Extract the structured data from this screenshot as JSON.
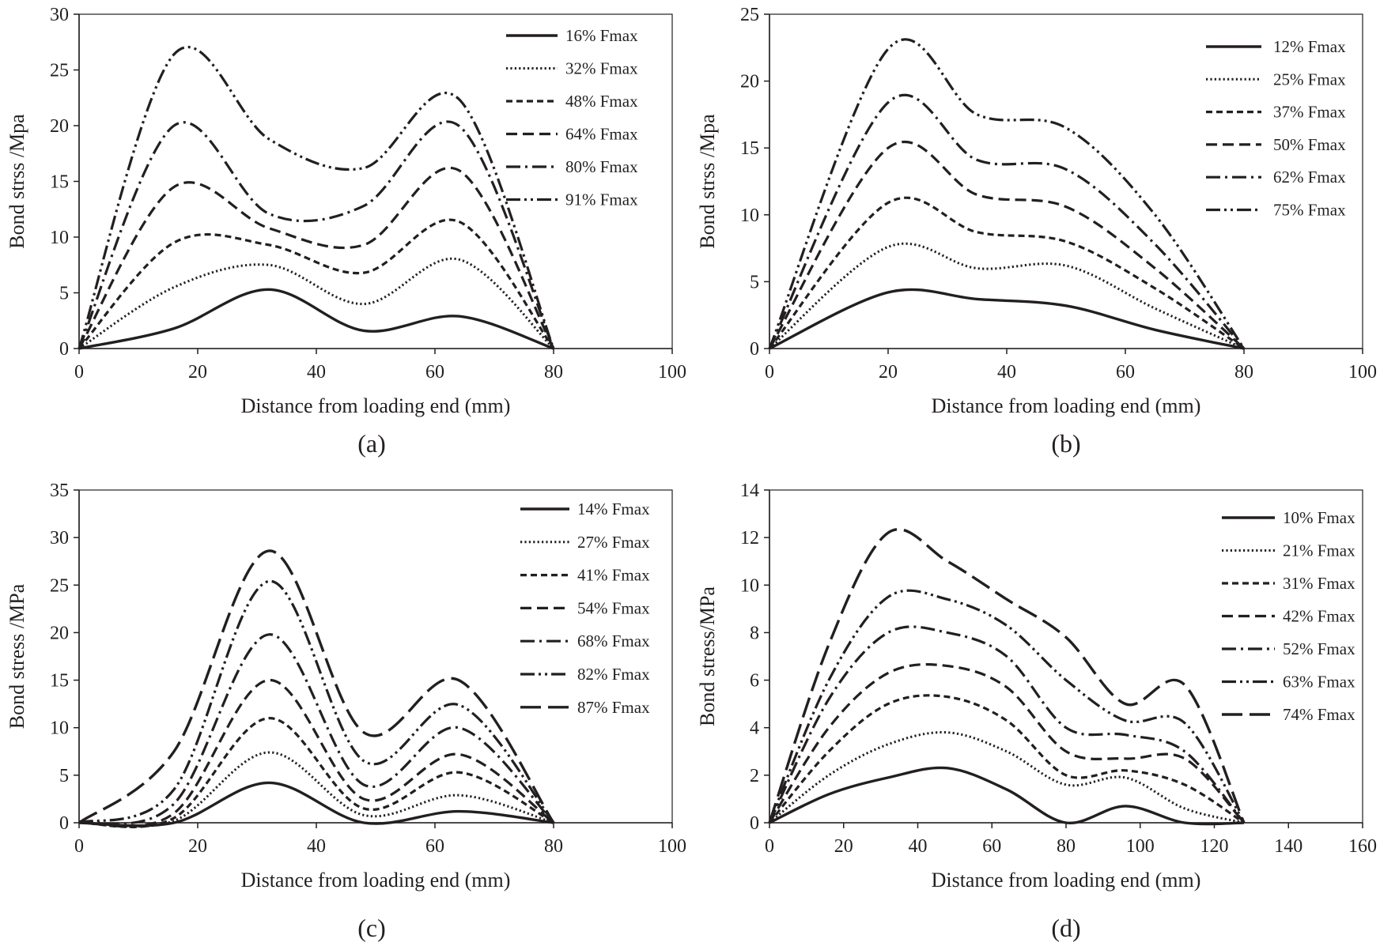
{
  "figure": {
    "background": "#ffffff",
    "ink_color": "#231f20"
  },
  "chart_data": [
    {
      "id": "a",
      "type": "line",
      "panel_label": "(a)",
      "xlabel": "Distance from loading end (mm)",
      "ylabel": "Bond strss /Mpa",
      "xlim": [
        0,
        100
      ],
      "ylim": [
        0,
        30
      ],
      "xticks": [
        0,
        20,
        40,
        60,
        80,
        100
      ],
      "yticks": [
        0,
        5,
        10,
        15,
        20,
        25,
        30
      ],
      "legend_position": "top-right",
      "series": [
        {
          "name": "16% Fmax",
          "style": "solid",
          "x": [
            0,
            16,
            32,
            48,
            64,
            80
          ],
          "y": [
            0,
            1.8,
            5.3,
            1.6,
            2.9,
            0
          ]
        },
        {
          "name": "32% Fmax",
          "style": "dotted",
          "x": [
            0,
            16,
            32,
            48,
            64,
            80
          ],
          "y": [
            0,
            5.5,
            7.5,
            4.0,
            8.0,
            0
          ]
        },
        {
          "name": "48% Fmax",
          "style": "short-dash",
          "x": [
            0,
            16,
            32,
            48,
            64,
            80
          ],
          "y": [
            0,
            9.5,
            9.3,
            6.8,
            11.4,
            0
          ]
        },
        {
          "name": "64% Fmax",
          "style": "dash",
          "x": [
            0,
            16,
            32,
            48,
            64,
            80
          ],
          "y": [
            0,
            14.5,
            10.8,
            9.3,
            16.0,
            0
          ]
        },
        {
          "name": "80% Fmax",
          "style": "dash-dot",
          "x": [
            0,
            16,
            32,
            48,
            64,
            80
          ],
          "y": [
            0,
            20.0,
            12.1,
            12.8,
            20.0,
            0
          ]
        },
        {
          "name": "91% Fmax",
          "style": "dash-dot-dot",
          "x": [
            0,
            16,
            32,
            48,
            64,
            80
          ],
          "y": [
            0,
            26.4,
            18.8,
            16.2,
            22.4,
            0
          ]
        }
      ]
    },
    {
      "id": "b",
      "type": "line",
      "panel_label": "(b)",
      "xlabel": "Distance from loading end (mm)",
      "ylabel": "Bond strss /Mpa",
      "xlim": [
        0,
        100
      ],
      "ylim": [
        0,
        25
      ],
      "xticks": [
        0,
        20,
        40,
        60,
        80,
        100
      ],
      "yticks": [
        0,
        5,
        10,
        15,
        20,
        25
      ],
      "legend_position": "top-right",
      "series": [
        {
          "name": "12% Fmax",
          "style": "solid",
          "x": [
            0,
            20,
            35,
            50,
            65,
            80
          ],
          "y": [
            0,
            4.2,
            3.7,
            3.2,
            1.4,
            0
          ]
        },
        {
          "name": "25% Fmax",
          "style": "dotted",
          "x": [
            0,
            20,
            35,
            50,
            65,
            80
          ],
          "y": [
            0,
            7.6,
            6.0,
            6.2,
            3.0,
            0
          ]
        },
        {
          "name": "37% Fmax",
          "style": "short-dash",
          "x": [
            0,
            20,
            35,
            50,
            65,
            80
          ],
          "y": [
            0,
            10.9,
            8.7,
            8.0,
            4.5,
            0
          ]
        },
        {
          "name": "50% Fmax",
          "style": "dash",
          "x": [
            0,
            20,
            35,
            50,
            65,
            80
          ],
          "y": [
            0,
            15.0,
            11.5,
            10.6,
            6.0,
            0
          ]
        },
        {
          "name": "62% Fmax",
          "style": "dash-dot",
          "x": [
            0,
            20,
            35,
            50,
            65,
            80
          ],
          "y": [
            0,
            18.4,
            14.1,
            13.4,
            7.8,
            0
          ]
        },
        {
          "name": "75% Fmax",
          "style": "dash-dot-dot",
          "x": [
            0,
            20,
            35,
            50,
            65,
            80
          ],
          "y": [
            0,
            22.4,
            17.5,
            16.5,
            10.0,
            0
          ]
        }
      ]
    },
    {
      "id": "c",
      "type": "line",
      "panel_label": "(c)",
      "xlabel": "Distance from loading end (mm)",
      "ylabel": "Bond stress  /MPa",
      "xlim": [
        0,
        100
      ],
      "ylim": [
        0,
        35
      ],
      "xticks": [
        0,
        20,
        40,
        60,
        80,
        100
      ],
      "yticks": [
        0,
        5,
        10,
        15,
        20,
        25,
        30,
        35
      ],
      "legend_position": "top-right",
      "series": [
        {
          "name": "14% Fmax",
          "style": "solid",
          "x": [
            0,
            16,
            32,
            48,
            64,
            80
          ],
          "y": [
            0,
            0,
            4.2,
            0,
            1.2,
            0
          ]
        },
        {
          "name": "27% Fmax",
          "style": "dotted",
          "x": [
            0,
            16,
            32,
            48,
            64,
            80
          ],
          "y": [
            0,
            0.2,
            7.4,
            0.8,
            2.9,
            0
          ]
        },
        {
          "name": "41% Fmax",
          "style": "short-dash",
          "x": [
            0,
            16,
            32,
            48,
            64,
            80
          ],
          "y": [
            0,
            0.5,
            11.0,
            1.5,
            5.3,
            0
          ]
        },
        {
          "name": "54% Fmax",
          "style": "dash",
          "x": [
            0,
            16,
            32,
            48,
            64,
            80
          ],
          "y": [
            0,
            1.0,
            15.0,
            2.5,
            7.2,
            0
          ]
        },
        {
          "name": "68% Fmax",
          "style": "dash-dot",
          "x": [
            0,
            16,
            32,
            48,
            64,
            80
          ],
          "y": [
            0,
            2.0,
            19.8,
            4.0,
            10.0,
            0
          ]
        },
        {
          "name": "82% Fmax",
          "style": "dash-dot-dot",
          "x": [
            0,
            16,
            32,
            48,
            64,
            80
          ],
          "y": [
            0,
            3.5,
            25.4,
            6.5,
            12.4,
            0
          ]
        },
        {
          "name": "87% Fmax",
          "style": "long-dash",
          "x": [
            0,
            16,
            32,
            48,
            64,
            80
          ],
          "y": [
            0,
            7.5,
            28.6,
            9.5,
            15.0,
            0
          ]
        }
      ]
    },
    {
      "id": "d",
      "type": "line",
      "panel_label": "(d)",
      "xlabel": "Distance from loading end (mm)",
      "ylabel": "Bond stress/MPa",
      "xlim": [
        0,
        160
      ],
      "ylim": [
        0,
        14
      ],
      "xticks": [
        0,
        20,
        40,
        60,
        80,
        100,
        120,
        140,
        160
      ],
      "yticks": [
        0,
        2,
        4,
        6,
        8,
        10,
        12,
        14
      ],
      "legend_position": "top-right",
      "series": [
        {
          "name": "10% Fmax",
          "style": "solid",
          "x": [
            0,
            16,
            32,
            48,
            64,
            80,
            96,
            112,
            128
          ],
          "y": [
            0,
            1.2,
            1.9,
            2.3,
            1.4,
            0,
            0.7,
            0,
            0
          ]
        },
        {
          "name": "21% Fmax",
          "style": "dotted",
          "x": [
            0,
            16,
            32,
            48,
            64,
            80,
            96,
            112,
            128
          ],
          "y": [
            0,
            2.0,
            3.3,
            3.8,
            3.0,
            1.6,
            1.9,
            0.6,
            0
          ]
        },
        {
          "name": "31% Fmax",
          "style": "short-dash",
          "x": [
            0,
            16,
            32,
            48,
            64,
            80,
            96,
            112,
            128
          ],
          "y": [
            0,
            3.0,
            5.0,
            5.3,
            4.3,
            2.0,
            2.2,
            1.6,
            0
          ]
        },
        {
          "name": "42% Fmax",
          "style": "dash",
          "x": [
            0,
            16,
            32,
            48,
            64,
            80,
            96,
            112,
            128
          ],
          "y": [
            0,
            4.0,
            6.3,
            6.6,
            5.7,
            3.0,
            2.7,
            2.7,
            0
          ]
        },
        {
          "name": "52% Fmax",
          "style": "dash-dot",
          "x": [
            0,
            16,
            32,
            48,
            64,
            80,
            96,
            112,
            128
          ],
          "y": [
            0,
            5.2,
            8.0,
            8.0,
            7.0,
            4.0,
            3.7,
            3.0,
            0
          ]
        },
        {
          "name": "63% Fmax",
          "style": "dash-dot-dot",
          "x": [
            0,
            16,
            32,
            48,
            64,
            80,
            96,
            112,
            128
          ],
          "y": [
            0,
            6.0,
            9.5,
            9.4,
            8.3,
            6.0,
            4.3,
            4.2,
            0
          ]
        },
        {
          "name": "74% Fmax",
          "style": "long-dash",
          "x": [
            0,
            16,
            32,
            48,
            64,
            80,
            96,
            112,
            128
          ],
          "y": [
            0,
            7.5,
            12.2,
            11.0,
            9.4,
            7.8,
            5.0,
            5.8,
            0
          ]
        }
      ]
    }
  ]
}
